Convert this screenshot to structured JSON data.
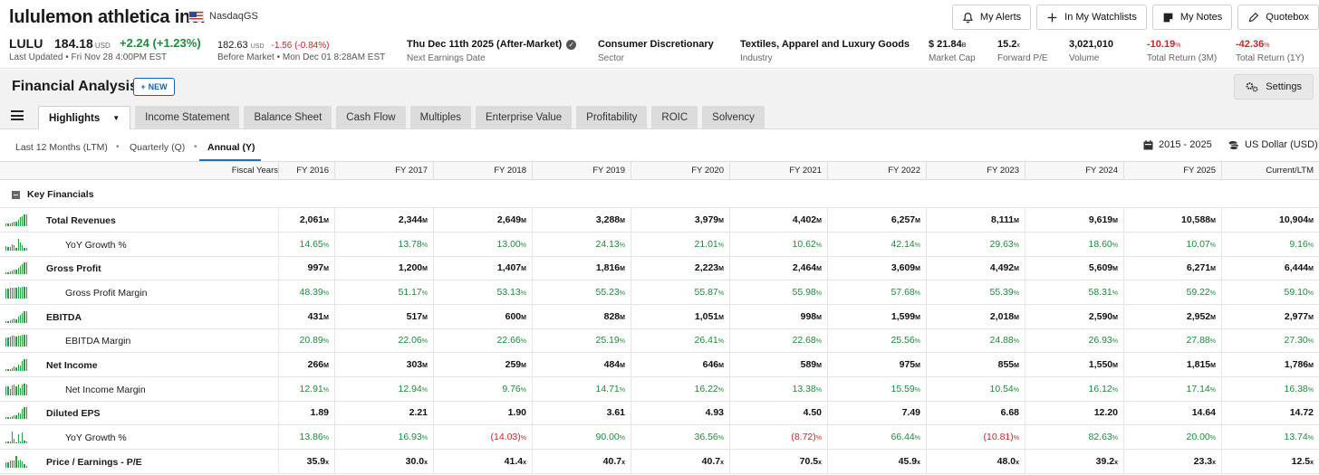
{
  "header": {
    "company": "lululemon athletica inc.",
    "exchange": "NasdaqGS",
    "ticker": "LULU",
    "price": "184.18",
    "price_currency": "USD",
    "change": "+2.24",
    "change_pct": "(+1.23%)",
    "last_updated": "Last Updated • Fri Nov 28 4:00PM EST",
    "before_market_price": "182.63",
    "before_market_currency": "USD",
    "before_market_change": "-1.56",
    "before_market_change_pct": "(-0.84%)",
    "before_market_label": "Before Market • Mon Dec 01 8:28AM EST",
    "buttons": {
      "alerts": "My Alerts",
      "watchlists": "In My Watchlists",
      "notes": "My Notes",
      "quotebox": "Quotebox"
    },
    "stats": {
      "earnings_value": "Thu Dec 11th 2025 (After-Market)",
      "earnings_label": "Next Earnings Date",
      "sector_value": "Consumer Discretionary",
      "sector_label": "Sector",
      "industry_value": "Textiles, Apparel and Luxury Goods",
      "industry_label": "Industry",
      "mcap_value": "$ 21.84",
      "mcap_unit": "B",
      "mcap_label": "Market Cap",
      "pe_value": "15.2",
      "pe_unit": "x",
      "pe_label": "Forward P/E",
      "volume_value": "3,021,010",
      "volume_label": "Volume",
      "ret3m_value": "-10.19",
      "ret3m_unit": "%",
      "ret3m_label": "Total Return (3M)",
      "ret1y_value": "-42.36",
      "ret1y_unit": "%",
      "ret1y_label": "Total Return (1Y)"
    }
  },
  "analysis": {
    "title": "Financial Analysis",
    "new_label": "NEW",
    "settings_label": "Settings",
    "tabs": [
      "Highlights",
      "Income Statement",
      "Balance Sheet",
      "Cash Flow",
      "Multiples",
      "Enterprise Value",
      "Profitability",
      "ROIC",
      "Solvency"
    ],
    "periods": [
      "Last 12 Months (LTM)",
      "Quarterly (Q)",
      "Annual (Y)"
    ],
    "range": "2015 - 2025",
    "currency": "US Dollar (USD)"
  },
  "table": {
    "header_label": "Fiscal Years",
    "columns": [
      "FY 2016",
      "FY 2017",
      "FY 2018",
      "FY 2019",
      "FY 2020",
      "FY 2021",
      "FY 2022",
      "FY 2023",
      "FY 2024",
      "FY 2025",
      "Current/LTM"
    ],
    "section": "Key Financials",
    "rows": [
      {
        "label": "Total Revenues",
        "kind": "bold",
        "unit": "M",
        "values": [
          "2,061",
          "2,344",
          "2,649",
          "3,288",
          "3,979",
          "4,402",
          "6,257",
          "8,111",
          "9,619",
          "10,588",
          "10,904"
        ],
        "spark": [
          0.2,
          0.22,
          0.25,
          0.3,
          0.36,
          0.4,
          0.57,
          0.74,
          0.88,
          0.97,
          1.0
        ]
      },
      {
        "label": "YoY Growth %",
        "kind": "sub",
        "unit": "%",
        "values": [
          "14.65",
          "13.78",
          "13.00",
          "24.13",
          "21.01",
          "10.62",
          "42.14",
          "29.63",
          "18.60",
          "10.07",
          "9.16"
        ],
        "spark": [
          0.35,
          0.33,
          0.31,
          0.57,
          0.5,
          0.25,
          1.0,
          0.7,
          0.44,
          0.24,
          0.22
        ]
      },
      {
        "label": "Gross Profit",
        "kind": "bold",
        "unit": "M",
        "values": [
          "997",
          "1,200",
          "1,407",
          "1,816",
          "2,223",
          "2,464",
          "3,609",
          "4,492",
          "5,609",
          "6,271",
          "6,444"
        ],
        "spark": [
          0.16,
          0.19,
          0.22,
          0.28,
          0.35,
          0.38,
          0.56,
          0.7,
          0.87,
          0.97,
          1.0
        ]
      },
      {
        "label": "Gross Profit Margin",
        "kind": "sub",
        "unit": "%",
        "values": [
          "48.39",
          "51.17",
          "53.13",
          "55.23",
          "55.87",
          "55.98",
          "57.68",
          "55.39",
          "58.31",
          "59.22",
          "59.10"
        ],
        "spark": [
          0.82,
          0.86,
          0.9,
          0.93,
          0.94,
          0.95,
          0.97,
          0.94,
          0.98,
          1.0,
          1.0
        ]
      },
      {
        "label": "EBITDA",
        "kind": "bold",
        "unit": "M",
        "values": [
          "431",
          "517",
          "600",
          "828",
          "1,051",
          "998",
          "1,599",
          "2,018",
          "2,590",
          "2,952",
          "2,977"
        ],
        "spark": [
          0.15,
          0.17,
          0.2,
          0.28,
          0.35,
          0.33,
          0.54,
          0.68,
          0.87,
          0.99,
          1.0
        ]
      },
      {
        "label": "EBITDA Margin",
        "kind": "sub",
        "unit": "%",
        "values": [
          "20.89",
          "22.06",
          "22.66",
          "25.19",
          "26.41",
          "22.68",
          "25.56",
          "24.88",
          "26.93",
          "27.88",
          "27.30"
        ],
        "spark": [
          0.75,
          0.79,
          0.81,
          0.9,
          0.95,
          0.81,
          0.92,
          0.89,
          0.97,
          1.0,
          0.98
        ]
      },
      {
        "label": "Net Income",
        "kind": "bold",
        "unit": "M",
        "values": [
          "266",
          "303",
          "259",
          "484",
          "646",
          "589",
          "975",
          "855",
          "1,550",
          "1,815",
          "1,786"
        ],
        "spark": [
          0.15,
          0.17,
          0.14,
          0.27,
          0.36,
          0.32,
          0.54,
          0.47,
          0.85,
          1.0,
          0.98
        ]
      },
      {
        "label": "Net Income Margin",
        "kind": "sub",
        "unit": "%",
        "values": [
          "12.91",
          "12.94",
          "9.76",
          "14.71",
          "16.22",
          "13.38",
          "15.59",
          "10.54",
          "16.12",
          "17.14",
          "16.38"
        ],
        "spark": [
          0.75,
          0.75,
          0.57,
          0.86,
          0.95,
          0.78,
          0.91,
          0.61,
          0.94,
          1.0,
          0.96
        ]
      },
      {
        "label": "Diluted EPS",
        "kind": "bold",
        "unit": "",
        "values": [
          "1.89",
          "2.21",
          "1.90",
          "3.61",
          "4.93",
          "4.50",
          "7.49",
          "6.68",
          "12.20",
          "14.64",
          "14.72"
        ],
        "spark": [
          0.13,
          0.15,
          0.13,
          0.25,
          0.33,
          0.31,
          0.51,
          0.45,
          0.83,
          0.99,
          1.0
        ]
      },
      {
        "label": "YoY Growth %",
        "kind": "sub",
        "unit": "%",
        "values": [
          "13.86",
          "16.93",
          "(14.03)",
          "90.00",
          "36.56",
          "(8.72)",
          "66.44",
          "(10.81)",
          "82.63",
          "20.00",
          "13.74"
        ],
        "spark": [
          0.15,
          0.19,
          0.16,
          1.0,
          0.41,
          0.1,
          0.74,
          0.12,
          0.92,
          0.22,
          0.15
        ]
      },
      {
        "label": "Price / Earnings - P/E",
        "kind": "bold",
        "unit": "x",
        "values": [
          "35.9",
          "30.0",
          "41.4",
          "40.7",
          "40.7",
          "70.5",
          "45.9",
          "48.0",
          "39.2",
          "23.3",
          "12.5"
        ],
        "spark": [
          0.5,
          0.43,
          0.59,
          0.58,
          0.58,
          1.0,
          0.65,
          0.68,
          0.56,
          0.33,
          0.18
        ]
      }
    ]
  },
  "colors": {
    "positive": "#1f8a3a",
    "negative": "#c62828",
    "accent": "#1a73c8"
  }
}
